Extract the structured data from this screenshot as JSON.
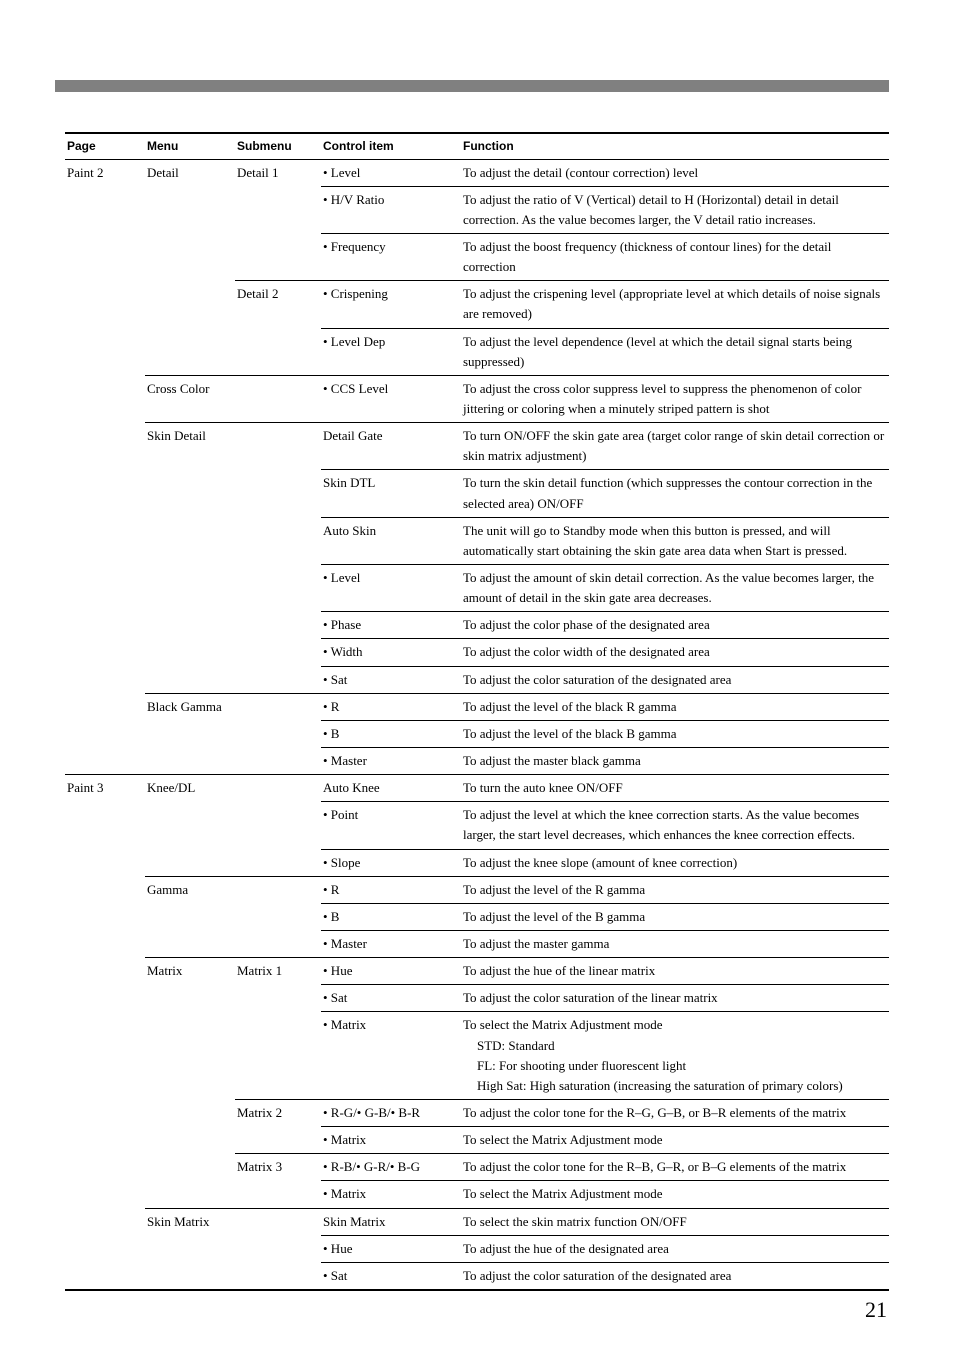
{
  "header": {
    "top_bar_color": "#808080",
    "cols": {
      "page": "Page",
      "menu": "Menu",
      "submenu": "Submenu",
      "item": "Control item",
      "func": "Function"
    }
  },
  "page_number": "21",
  "rows": [
    {
      "page": "Paint 2",
      "menu": "Detail",
      "submenu": "Detail 1",
      "item": "• Level",
      "func": "To adjust the detail (contour correction) level",
      "b": {
        "page": false,
        "menu": false,
        "submenu": false,
        "item": true,
        "func": true
      }
    },
    {
      "item": "• H/V Ratio",
      "func": "To adjust the ratio of V (Vertical) detail to H (Horizontal) detail in detail correction. As the value becomes larger, the V detail ratio increases.",
      "b": {
        "page": false,
        "menu": false,
        "submenu": false,
        "item": true,
        "func": true
      }
    },
    {
      "item": "• Frequency",
      "func": "To adjust the boost frequency (thickness of contour lines) for the detail correction",
      "b": {
        "page": false,
        "menu": false,
        "submenu": true,
        "item": true,
        "func": true
      }
    },
    {
      "submenu": "Detail 2",
      "item": "• Crispening",
      "func": "To adjust the crispening level (appropriate level at which details of noise signals are removed)",
      "b": {
        "page": false,
        "menu": false,
        "submenu": false,
        "item": true,
        "func": true
      }
    },
    {
      "item": "• Level Dep",
      "func": "To adjust the level dependence (level at which the detail signal starts being suppressed)",
      "b": {
        "page": false,
        "menu": true,
        "submenu": true,
        "item": true,
        "func": true
      }
    },
    {
      "menu": "Cross Color",
      "span_menu": 2,
      "item": "• CCS Level",
      "func": "To adjust the cross color suppress level to suppress the phenomenon of color jittering or coloring when a minutely striped pattern is shot",
      "b": {
        "page": false,
        "menu": true,
        "item": true,
        "func": true
      }
    },
    {
      "menu": "Skin Detail",
      "span_menu": 2,
      "item": "Detail Gate",
      "func": "To turn ON/OFF the skin gate area (target color range of skin detail correction or skin matrix adjustment)",
      "b": {
        "page": false,
        "menu": false,
        "item": true,
        "func": true
      }
    },
    {
      "span_menu": 2,
      "item": "Skin DTL",
      "func": "To turn the skin detail function (which suppresses the contour correction in the selected area) ON/OFF",
      "b": {
        "page": false,
        "menu": false,
        "item": true,
        "func": true
      }
    },
    {
      "span_menu": 2,
      "item": "Auto Skin",
      "func": "The unit will go to Standby mode when this button is pressed, and will automatically start obtaining the skin gate area data when Start is pressed.",
      "b": {
        "page": false,
        "menu": false,
        "item": true,
        "func": true
      }
    },
    {
      "span_menu": 2,
      "item": "• Level",
      "func": "To adjust the amount of skin detail correction. As the value becomes larger, the amount of detail in the skin gate area decreases.",
      "b": {
        "page": false,
        "menu": false,
        "item": true,
        "func": true
      }
    },
    {
      "span_menu": 2,
      "item": "• Phase",
      "func": "To adjust the color phase of the designated area",
      "b": {
        "page": false,
        "menu": false,
        "item": true,
        "func": true
      }
    },
    {
      "span_menu": 2,
      "item": "• Width",
      "func": "To adjust the color width of the designated area",
      "b": {
        "page": false,
        "menu": false,
        "item": true,
        "func": true
      }
    },
    {
      "span_menu": 2,
      "item": "• Sat",
      "func": "To adjust the color saturation of the designated area",
      "b": {
        "page": false,
        "menu": true,
        "item": true,
        "func": true
      }
    },
    {
      "menu": "Black Gamma",
      "span_menu": 2,
      "item": "• R",
      "func": "To adjust the level of the black R gamma",
      "b": {
        "page": false,
        "menu": false,
        "item": true,
        "func": true
      }
    },
    {
      "span_menu": 2,
      "item": "• B",
      "func": "To adjust the level of the black B gamma",
      "b": {
        "page": false,
        "menu": false,
        "item": true,
        "func": true
      }
    },
    {
      "span_menu": 2,
      "item": "• Master",
      "func": "To adjust the master black gamma",
      "b": {
        "page": true,
        "menu": true,
        "item": true,
        "func": true
      }
    },
    {
      "page": "Paint 3",
      "menu": "Knee/DL",
      "span_menu": 2,
      "item": "Auto Knee",
      "func": "To turn the auto knee ON/OFF",
      "b": {
        "page": false,
        "menu": false,
        "item": true,
        "func": true
      }
    },
    {
      "span_menu": 2,
      "item": "• Point",
      "func": "To adjust the level at which the knee correction starts. As the value becomes larger, the start level decreases, which enhances the knee correction effects.",
      "b": {
        "page": false,
        "menu": false,
        "item": true,
        "func": true
      }
    },
    {
      "span_menu": 2,
      "item": "• Slope",
      "func": "To adjust the knee slope (amount of knee correction)",
      "b": {
        "page": false,
        "menu": true,
        "item": true,
        "func": true
      }
    },
    {
      "menu": "Gamma",
      "span_menu": 2,
      "item": "• R",
      "func": "To adjust the level of the R gamma",
      "b": {
        "page": false,
        "menu": false,
        "item": true,
        "func": true
      }
    },
    {
      "span_menu": 2,
      "item": "• B",
      "func": "To adjust the level of the B gamma",
      "b": {
        "page": false,
        "menu": false,
        "item": true,
        "func": true
      }
    },
    {
      "span_menu": 2,
      "item": "• Master",
      "func": "To adjust the master gamma",
      "b": {
        "page": false,
        "menu": true,
        "item": true,
        "func": true
      }
    },
    {
      "menu": "Matrix",
      "submenu": "Matrix 1",
      "item": "• Hue",
      "func": "To adjust the hue of the linear matrix",
      "b": {
        "page": false,
        "menu": false,
        "submenu": false,
        "item": true,
        "func": true
      }
    },
    {
      "item": "• Sat",
      "func": "To adjust the color saturation of the linear matrix",
      "b": {
        "page": false,
        "menu": false,
        "submenu": false,
        "item": true,
        "func": true
      }
    },
    {
      "item": "• Matrix",
      "func": "To select the Matrix Adjustment mode",
      "func_extra": [
        "STD: Standard",
        "FL: For shooting under fluorescent light",
        "High Sat: High saturation (increasing the saturation of primary colors)"
      ],
      "b": {
        "page": false,
        "menu": false,
        "submenu": true,
        "item": true,
        "func": true
      }
    },
    {
      "submenu": "Matrix 2",
      "item": "• R-G/• G-B/• B-R",
      "func": "To adjust the color tone for the R–G, G–B, or B–R elements of the matrix",
      "b": {
        "page": false,
        "menu": false,
        "submenu": false,
        "item": true,
        "func": true
      }
    },
    {
      "item": "• Matrix",
      "func": "To select the Matrix Adjustment mode",
      "b": {
        "page": false,
        "menu": false,
        "submenu": true,
        "item": true,
        "func": true
      }
    },
    {
      "submenu": "Matrix 3",
      "item": "• R-B/• G-R/• B-G",
      "func": "To adjust the color tone for the R–B, G–R, or B–G elements of the matrix",
      "b": {
        "page": false,
        "menu": false,
        "submenu": false,
        "item": true,
        "func": true
      }
    },
    {
      "item": "• Matrix",
      "func": "To select the Matrix Adjustment mode",
      "b": {
        "page": false,
        "menu": true,
        "submenu": true,
        "item": true,
        "func": true
      }
    },
    {
      "menu": "Skin Matrix",
      "span_menu": 2,
      "item": "Skin Matrix",
      "func": "To select the skin matrix function ON/OFF",
      "b": {
        "page": false,
        "menu": false,
        "item": true,
        "func": true
      }
    },
    {
      "span_menu": 2,
      "item": "• Hue",
      "func": "To adjust the hue of the designated area",
      "b": {
        "page": false,
        "menu": false,
        "item": true,
        "func": true
      }
    },
    {
      "span_menu": 2,
      "item": "• Sat",
      "func": "To adjust the color saturation of the designated area",
      "b": {
        "page": true,
        "menu": true,
        "item": true,
        "func": true
      },
      "last": true
    }
  ]
}
